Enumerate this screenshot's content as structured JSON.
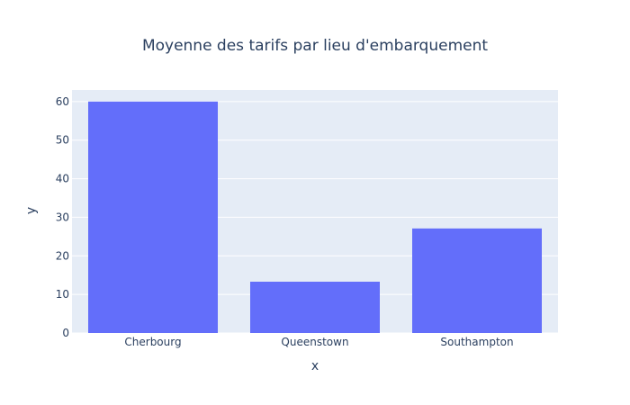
{
  "chart_data": {
    "type": "bar",
    "title": "Moyenne des tarifs par lieu d'embarquement",
    "xlabel": "x",
    "ylabel": "y",
    "categories": [
      "Cherbourg",
      "Queenstown",
      "Southampton"
    ],
    "values": [
      60.0,
      13.3,
      27.1
    ],
    "ylim": [
      0,
      63
    ],
    "yticks": [
      0,
      10,
      20,
      30,
      40,
      50,
      60
    ],
    "grid": true,
    "colors": {
      "bar": "#636efa",
      "plot_background": "#e5ecf6",
      "gridline": "#ffffff",
      "text": "#2a3f5f"
    }
  }
}
